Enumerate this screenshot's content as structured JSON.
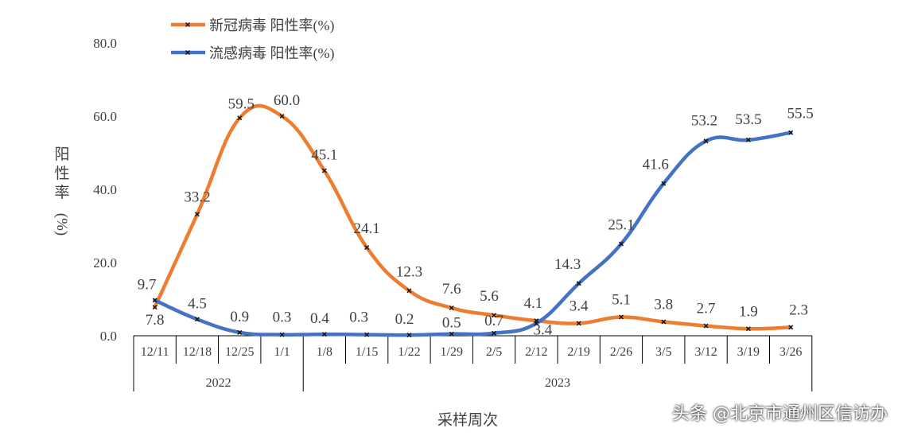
{
  "chart_data": {
    "type": "line",
    "categories": [
      "12/11",
      "12/18",
      "12/25",
      "1/1",
      "1/8",
      "1/15",
      "1/22",
      "1/29",
      "2/5",
      "2/12",
      "2/19",
      "2/26",
      "3/5",
      "3/12",
      "3/19",
      "3/26"
    ],
    "year_groups": [
      {
        "label": "2022",
        "count": 4
      },
      {
        "label": "2023",
        "count": 12
      }
    ],
    "series": [
      {
        "name": "新冠病毒 阳性率(%)",
        "color": "#ED7D31",
        "values": [
          7.8,
          33.2,
          59.5,
          60.0,
          45.1,
          24.1,
          12.3,
          7.6,
          5.6,
          4.1,
          3.4,
          5.1,
          3.8,
          2.7,
          1.9,
          2.3
        ]
      },
      {
        "name": "流感病毒 阳性率(%)",
        "color": "#4472C4",
        "values": [
          9.7,
          4.5,
          0.9,
          0.3,
          0.4,
          0.3,
          0.2,
          0.5,
          0.7,
          3.4,
          14.3,
          25.1,
          41.6,
          53.2,
          53.5,
          55.5
        ]
      }
    ],
    "ylabel": "阳性率(%)",
    "xlabel": "采样周次",
    "ylim": [
      0,
      80
    ],
    "yticks": [
      "0.0",
      "20.0",
      "40.0",
      "60.0",
      "80.0"
    ],
    "grid": false,
    "legend": "top-left",
    "smooth": true
  },
  "watermark": "头条 @北京市通州区信访办"
}
